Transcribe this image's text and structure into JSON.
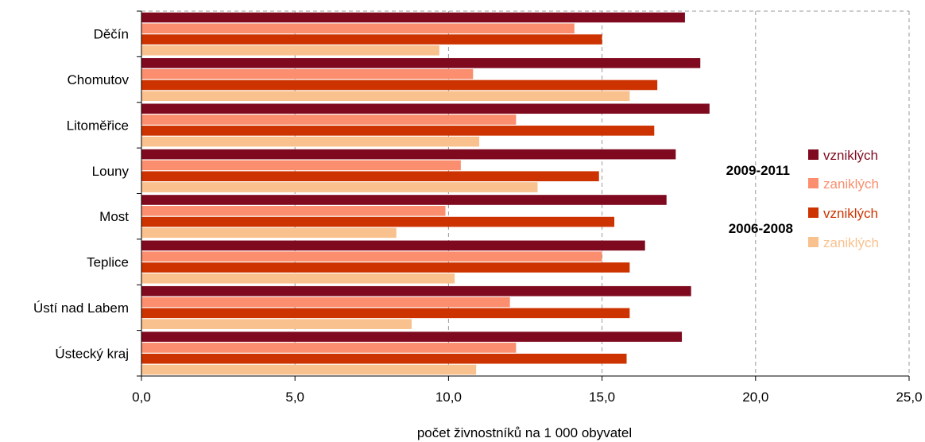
{
  "chart_data": {
    "type": "bar",
    "orientation": "horizontal",
    "categories": [
      "Děčín",
      "Chomutov",
      "Litoměřice",
      "Louny",
      "Most",
      "Teplice",
      "Ústí nad Labem",
      "Ústecký kraj"
    ],
    "series": [
      {
        "name": "vzniklých",
        "period": "2009-2011",
        "color": "#7f0a1f",
        "values": [
          17.7,
          18.2,
          18.5,
          17.4,
          17.1,
          16.4,
          17.9,
          17.6
        ]
      },
      {
        "name": "zaniklých",
        "period": "2009-2011",
        "color": "#fa8e6e",
        "values": [
          14.1,
          10.8,
          12.2,
          10.4,
          9.9,
          15.0,
          12.0,
          12.2
        ]
      },
      {
        "name": "vzniklých",
        "period": "2006-2008",
        "color": "#cc3300",
        "values": [
          15.0,
          16.8,
          16.7,
          14.9,
          15.4,
          15.9,
          15.9,
          15.8
        ]
      },
      {
        "name": "zaniklých",
        "period": "2006-2008",
        "color": "#f9c18e",
        "values": [
          9.7,
          15.9,
          11.0,
          12.9,
          8.3,
          10.2,
          8.8,
          10.9
        ]
      }
    ],
    "xlabel": "počet živnostníků na 1 000 obyvatel",
    "xlim": [
      0,
      25
    ],
    "xticks": [
      "0,0",
      "5,0",
      "10,0",
      "15,0",
      "20,0",
      "25,0"
    ],
    "xtick_values": [
      0,
      5,
      10,
      15,
      20,
      25
    ],
    "grid": "vertical dashed",
    "legend": {
      "placement": "right",
      "group_labels": [
        "2009-2011",
        "2006-2008"
      ],
      "entries": [
        "vzniklých",
        "zaniklých",
        "vzniklých",
        "zaniklých"
      ],
      "text_colors": [
        "#7f0a1f",
        "#fa8e6e",
        "#cc3300",
        "#f9c18e"
      ]
    }
  }
}
